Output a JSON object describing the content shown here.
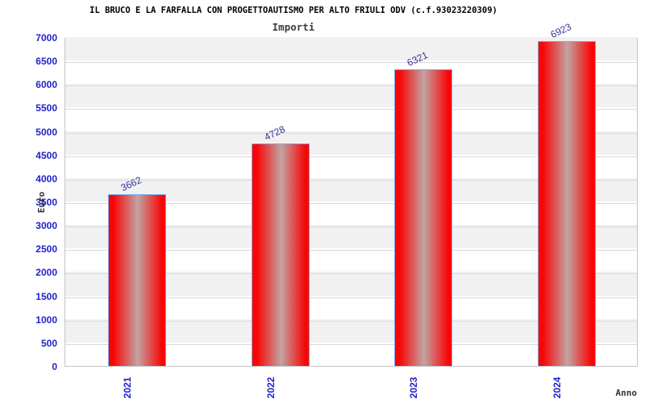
{
  "chart_data": {
    "type": "bar",
    "title": "IL BRUCO E LA FARFALLA CON PROGETTOAUTISMO PER ALTO FRIULI ODV (c.f.93023220309)",
    "subtitle": "Importi",
    "xlabel": "Anno",
    "ylabel": "Euro",
    "categories": [
      "2021",
      "2022",
      "2023",
      "2024"
    ],
    "values": [
      3662,
      4728,
      6321,
      6923
    ],
    "bar_value_labels": [
      "3662",
      "4728",
      "6321",
      "6923"
    ],
    "ylim": [
      0,
      7000
    ],
    "ytick_step": 500,
    "yticks": [
      0,
      500,
      1000,
      1500,
      2000,
      2500,
      3000,
      3500,
      4000,
      4500,
      5000,
      5500,
      6000,
      6500,
      7000
    ],
    "grid": "horizontal-gridlines-with-alternating-bands",
    "legend": null,
    "colors": {
      "bar_edge": "#f90505",
      "bar_center": "#c2a4a4",
      "bar_border": "#7aa8e8",
      "tick_label": "#2222cc",
      "value_label": "#333399",
      "band_fill": "#f1f1f1",
      "grid_line": "#d9d9d9",
      "plot_border": "#c5c5c5",
      "title": "#000000",
      "subtitle": "#3d3d3d",
      "axis_title": "#333333"
    }
  }
}
